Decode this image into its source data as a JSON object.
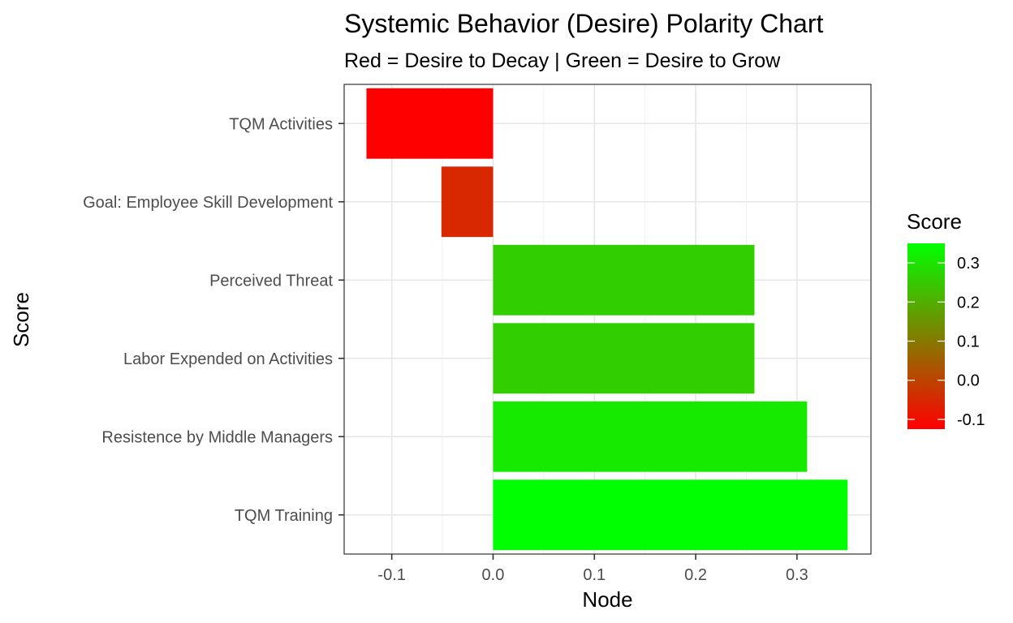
{
  "chart_data": {
    "type": "bar",
    "orientation": "horizontal",
    "title": "Systemic Behavior (Desire) Polarity Chart",
    "subtitle": "Red = Desire to Decay | Green = Desire to Grow",
    "xlabel": "Node",
    "ylabel": "Score",
    "categories": [
      "TQM Activities",
      "Goal: Employee Skill Development",
      "Perceived Threat",
      "Labor Expended on Activities",
      "Resistence by Middle Managers",
      "TQM Training"
    ],
    "values": [
      -0.125,
      -0.051,
      0.258,
      0.258,
      0.31,
      0.35
    ],
    "xlim": [
      -0.147,
      0.373
    ],
    "xticks": [
      -0.1,
      0.0,
      0.1,
      0.2,
      0.3
    ],
    "xtick_labels": [
      "-0.1",
      "0.0",
      "0.1",
      "0.2",
      "0.3"
    ],
    "grid": true,
    "legend": {
      "title": "Score",
      "position": "right",
      "type": "colorbar",
      "range": [
        -0.125,
        0.35
      ],
      "ticks": [
        -0.1,
        0.0,
        0.1,
        0.2,
        0.3
      ],
      "tick_labels": [
        "-0.1",
        "0.0",
        "0.1",
        "0.2",
        "0.3"
      ],
      "low_color": "#ff0000",
      "high_color": "#00ff00"
    }
  }
}
